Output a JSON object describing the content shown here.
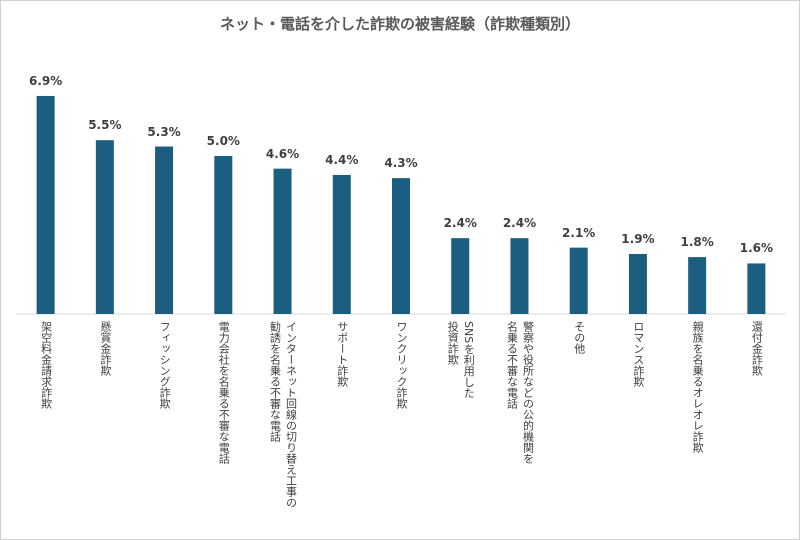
{
  "chart_data": {
    "type": "bar",
    "title": "ネット・電話を介した詐欺の被害経験（詐欺種類別）",
    "categories": [
      "架空料金請求詐欺",
      "懸賞金詐欺",
      "フィッシング詐欺",
      "電力会社を名乗る不審な電話",
      "インターネット回線の切り替え工事の\n勧誘を名乗る不審な電話",
      "サポート詐欺",
      "ワンクリック詐欺",
      "SNSを利用した\n投資詐欺",
      "警察や役所などの公的機関を\n名乗る不審な電話",
      "その他",
      "ロマンス詐欺",
      "親族を名乗るオレオレ詐欺",
      "還付金詐欺"
    ],
    "values": [
      6.9,
      5.5,
      5.3,
      5.0,
      4.6,
      4.4,
      4.3,
      2.4,
      2.4,
      2.1,
      1.9,
      1.8,
      1.6
    ],
    "value_labels": [
      "6.9%",
      "5.5%",
      "5.3%",
      "5.0%",
      "4.6%",
      "4.4%",
      "4.3%",
      "2.4%",
      "2.4%",
      "2.1%",
      "1.9%",
      "1.8%",
      "1.6%"
    ],
    "color": "#1b5e80",
    "ylim": [
      0,
      7.5
    ]
  }
}
